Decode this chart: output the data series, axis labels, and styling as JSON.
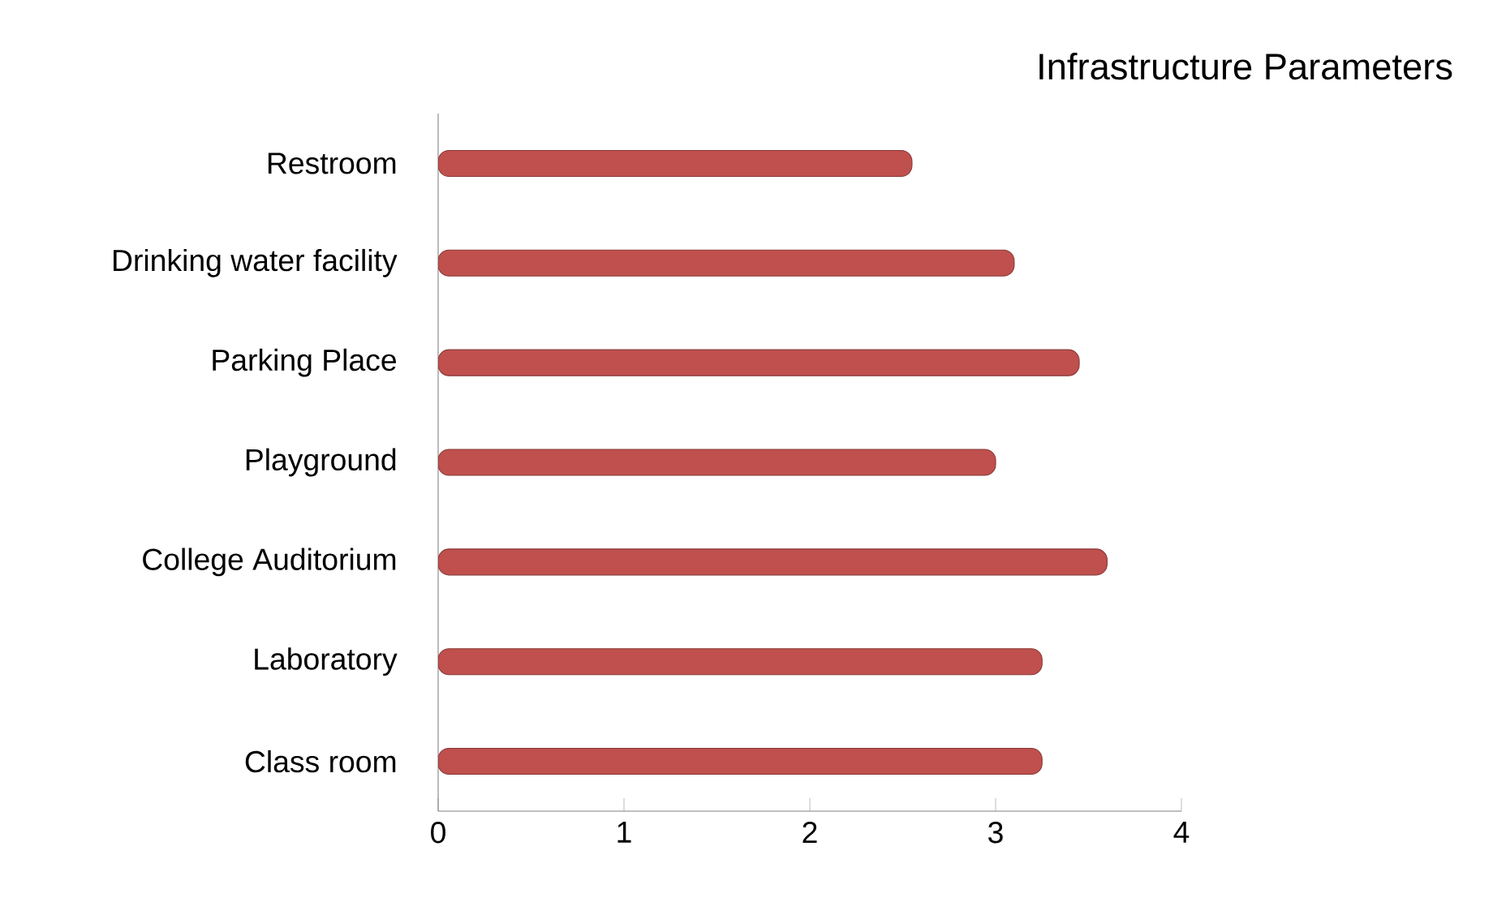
{
  "chart_data": {
    "type": "bar",
    "orientation": "horizontal",
    "title": "Infrastructure Parameters",
    "categories": [
      "Restroom",
      "Drinking water facility",
      "Parking Place",
      "Playground",
      "College Auditorium",
      "Laboratory",
      "Class room"
    ],
    "values": [
      2.55,
      3.1,
      3.45,
      3.0,
      3.6,
      3.25,
      3.25
    ],
    "color": "#c0504d",
    "xlim": [
      0,
      4
    ],
    "xticks": [
      0,
      1,
      2,
      3,
      4
    ],
    "grid": false
  }
}
